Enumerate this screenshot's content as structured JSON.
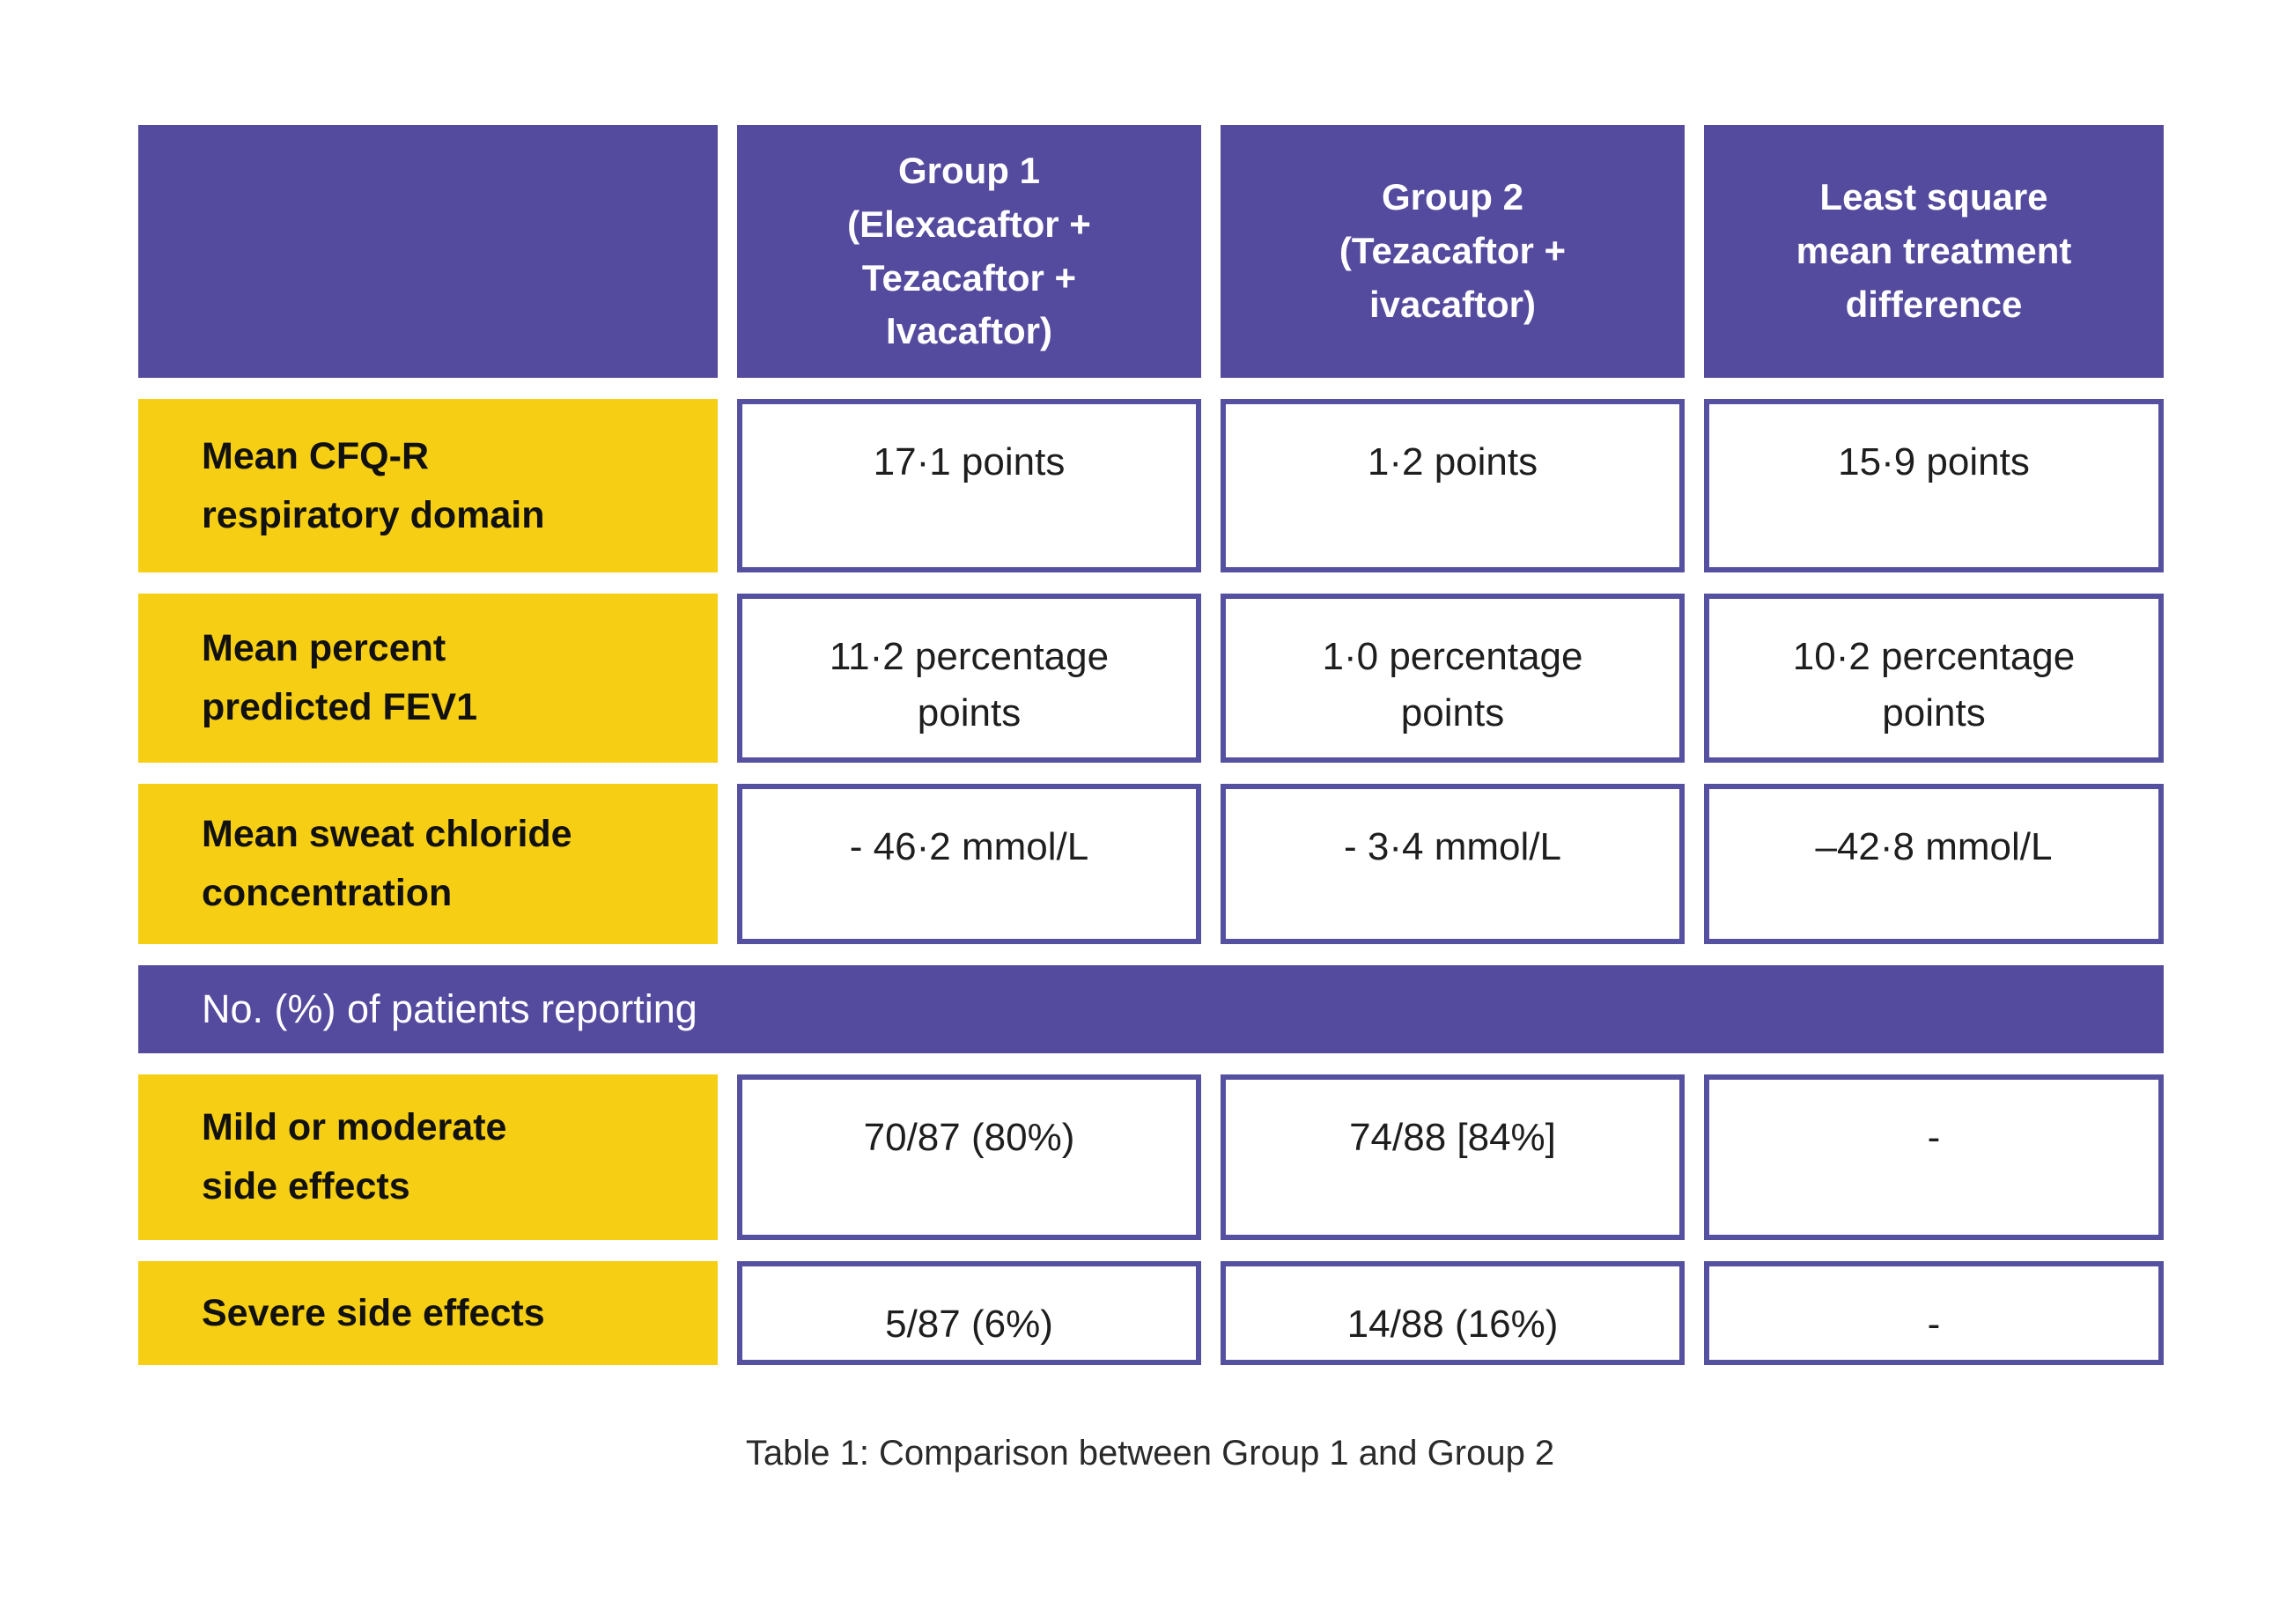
{
  "colors": {
    "purple": "#544A9E",
    "yellow": "#F6CE13",
    "cell_border": "#55509F",
    "header_text": "#FFFFFF",
    "label_text": "#111111",
    "value_text": "#1E1E1E"
  },
  "table": {
    "headers": [
      "Group 1\n(Elexacaftor +\nTezacaftor +\nIvacaftor)",
      "Group 2\n(Tezacaftor +\nivacaftor)",
      "Least square\nmean treatment\ndifference"
    ],
    "rows": [
      {
        "label": "Mean CFQ-R\nrespiratory domain",
        "values": [
          "17·1 points",
          "1·2 points",
          "15·9 points"
        ]
      },
      {
        "label": "Mean percent\npredicted FEV1",
        "values": [
          "11·2 percentage\npoints",
          "1·0 percentage\npoints",
          "10·2 percentage\npoints"
        ]
      },
      {
        "label": "Mean sweat chloride\nconcentration",
        "values": [
          "- 46·2 mmol/L",
          "- 3·4 mmol/L",
          "–42·8 mmol/L"
        ]
      },
      {
        "label": "Mild or moderate\nside effects",
        "values": [
          "70/87 (80%)",
          "74/88 [84%]",
          "-"
        ]
      },
      {
        "label": "Severe side effects",
        "values": [
          "5/87 (6%)",
          "14/88 (16%)",
          "-"
        ]
      }
    ],
    "section_header": "No. (%) of patients reporting",
    "caption": "Table 1: Comparison between Group 1 and Group 2"
  }
}
